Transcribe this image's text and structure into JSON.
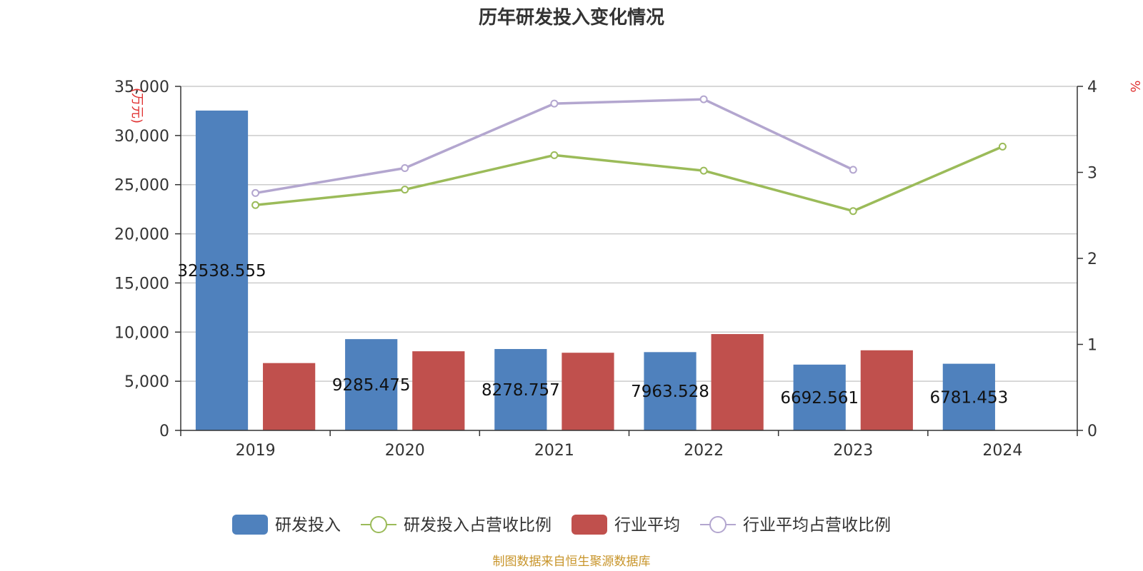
{
  "chart_data": {
    "type": "bar",
    "title": "历年研发投入变化情况",
    "categories": [
      "2019",
      "2020",
      "2021",
      "2022",
      "2023",
      "2024"
    ],
    "y_left": {
      "unit": "(万元)",
      "ylim": [
        0,
        35000
      ],
      "ticks": [
        0,
        5000,
        10000,
        15000,
        20000,
        25000,
        30000,
        35000
      ],
      "tick_labels": [
        "0",
        "5,000",
        "10,000",
        "15,000",
        "20,000",
        "25,000",
        "30,000",
        "35,000"
      ]
    },
    "y_right": {
      "unit": "%",
      "ylim": [
        0,
        4
      ],
      "ticks": [
        0,
        1,
        2,
        3,
        4
      ],
      "tick_labels": [
        "0",
        "1",
        "2",
        "3",
        "4"
      ]
    },
    "series": [
      {
        "name": "研发投入",
        "type": "bar",
        "axis": "left",
        "color": "#4f81bd",
        "values": [
          32538.555,
          9285.475,
          8278.757,
          7963.528,
          6692.561,
          6781.453
        ],
        "labels": [
          "32538.555",
          "9285.475",
          "8278.757",
          "7963.528",
          "6692.561",
          "6781.453"
        ]
      },
      {
        "name": "研发投入占营收比例",
        "type": "line",
        "axis": "right",
        "color": "#9bbb59",
        "values": [
          2.62,
          2.8,
          3.2,
          3.02,
          2.55,
          3.3
        ]
      },
      {
        "name": "行业平均",
        "type": "bar",
        "axis": "left",
        "color": "#c0504d",
        "values": [
          6850,
          8050,
          7900,
          9800,
          8150,
          null
        ]
      },
      {
        "name": "行业平均占营收比例",
        "type": "line",
        "axis": "right",
        "color": "#b3a6cf",
        "values": [
          2.76,
          3.05,
          3.8,
          3.85,
          3.03,
          null
        ]
      }
    ],
    "legend_position": "bottom",
    "grid": true
  },
  "source_note": "制图数据来自恒生聚源数据库"
}
